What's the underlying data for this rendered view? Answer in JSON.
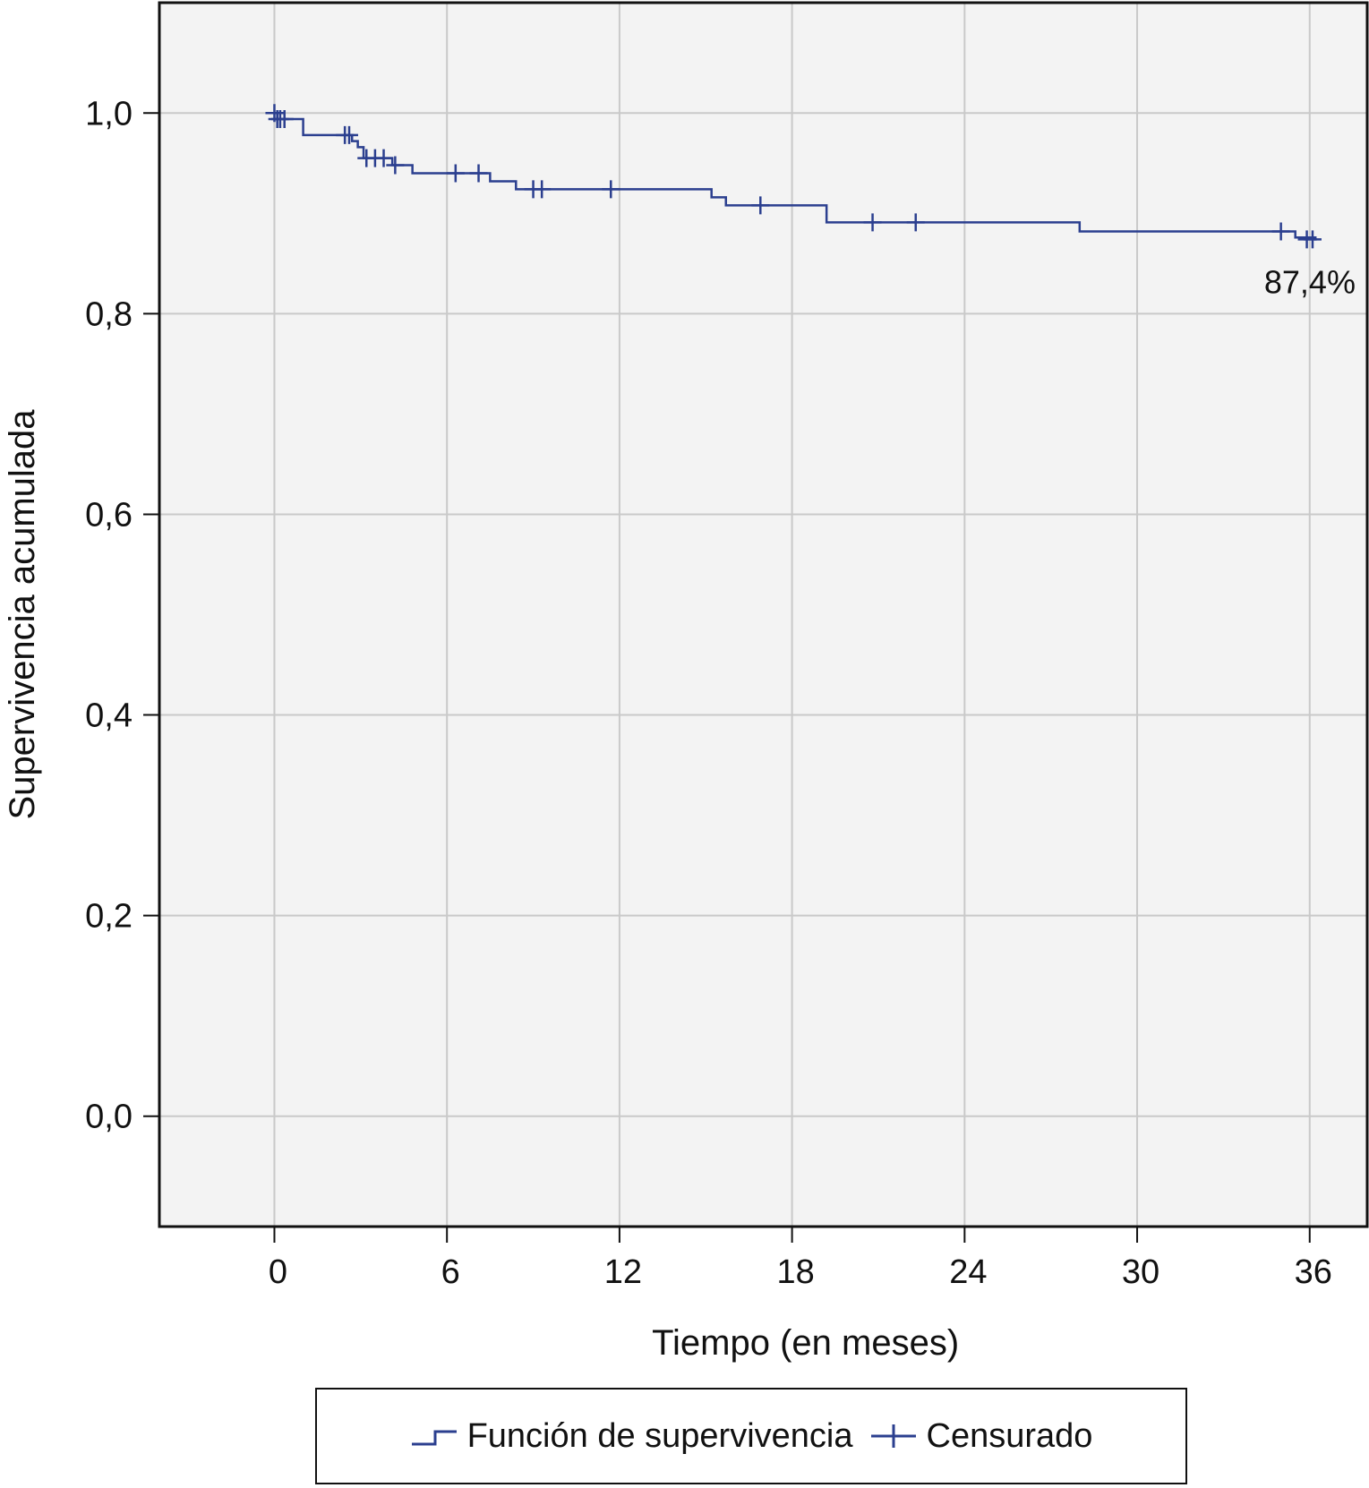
{
  "chart_data": {
    "type": "line",
    "xlabel": "Tiempo (en meses)",
    "ylabel": "Supervivencia acumulada",
    "xlim": [
      -4,
      38
    ],
    "ylim": [
      -0.11,
      1.11
    ],
    "x_ticks": [
      0,
      6,
      12,
      18,
      24,
      30,
      36
    ],
    "x_tick_labels": [
      "0",
      "6",
      "12",
      "18",
      "24",
      "30",
      "36"
    ],
    "y_ticks": [
      0.0,
      0.2,
      0.4,
      0.6,
      0.8,
      1.0
    ],
    "y_tick_labels": [
      "0,0",
      "0,2",
      "0,4",
      "0,6",
      "0,8",
      "1,0"
    ],
    "grid": true,
    "line_color": "#2b3f8f",
    "plot_background": "#f3f3f3",
    "series": [
      {
        "name": "Función de supervivencia",
        "step": [
          [
            0,
            1.0
          ],
          [
            0.1,
            0.994
          ],
          [
            1.0,
            0.978
          ],
          [
            2.7,
            0.972
          ],
          [
            2.9,
            0.966
          ],
          [
            3.1,
            0.955
          ],
          [
            4.1,
            0.948
          ],
          [
            4.8,
            0.94
          ],
          [
            7.5,
            0.932
          ],
          [
            8.4,
            0.924
          ],
          [
            15.2,
            0.916
          ],
          [
            15.7,
            0.908
          ],
          [
            19.2,
            0.891
          ],
          [
            28.0,
            0.882
          ],
          [
            35.5,
            0.876
          ],
          [
            36.2,
            0.874
          ]
        ],
        "censored": [
          [
            0,
            1.0
          ],
          [
            0.1,
            0.994
          ],
          [
            0.2,
            0.994
          ],
          [
            0.35,
            0.994
          ],
          [
            2.45,
            0.978
          ],
          [
            2.6,
            0.978
          ],
          [
            3.2,
            0.955
          ],
          [
            3.5,
            0.955
          ],
          [
            3.8,
            0.955
          ],
          [
            4.2,
            0.948
          ],
          [
            6.3,
            0.94
          ],
          [
            7.1,
            0.94
          ],
          [
            9.0,
            0.924
          ],
          [
            9.3,
            0.924
          ],
          [
            11.7,
            0.924
          ],
          [
            16.9,
            0.908
          ],
          [
            20.8,
            0.891
          ],
          [
            22.3,
            0.891
          ],
          [
            35.0,
            0.882
          ],
          [
            35.9,
            0.874
          ],
          [
            36.1,
            0.874
          ]
        ]
      }
    ],
    "annotations": [
      {
        "text": "87,4%",
        "x": 36.1,
        "y": 0.874
      }
    ],
    "legend": {
      "placement": "bottom",
      "items": [
        "Función de supervivencia",
        "Censurado"
      ]
    }
  }
}
